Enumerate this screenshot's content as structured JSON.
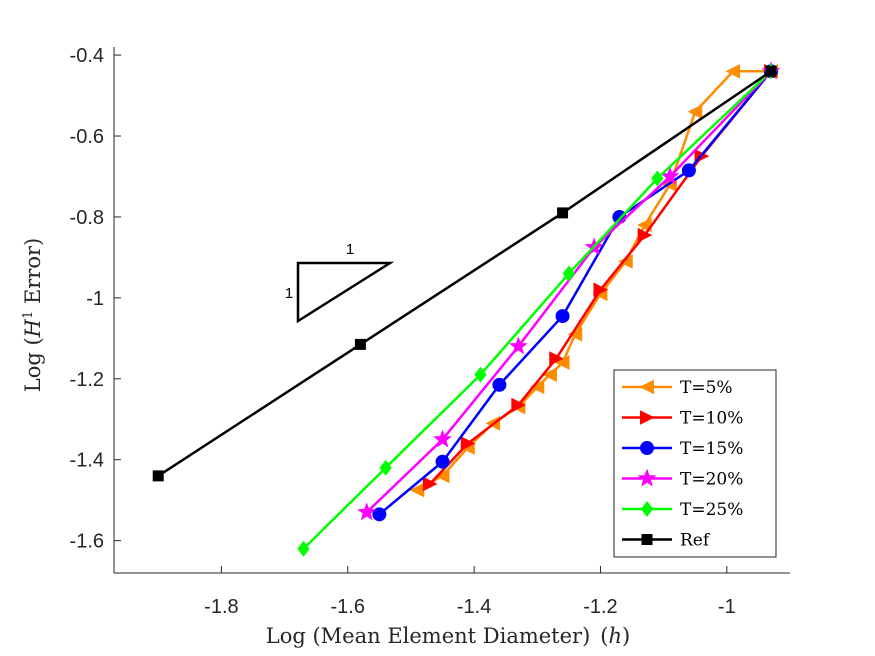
{
  "chart_data": {
    "type": "line",
    "title": "",
    "xlabel_main": "Log (Mean Element Diameter)",
    "xlabel_symbol": "h",
    "ylabel_prefix": "Log (",
    "ylabel_symbol": "H",
    "ylabel_sup": "1",
    "ylabel_suffix": " Error)",
    "xlim": [
      -1.97,
      -0.9
    ],
    "ylim": [
      -1.68,
      -0.38
    ],
    "xticks": [
      -1.8,
      -1.6,
      -1.4,
      -1.2,
      -1
    ],
    "xtick_labels": [
      "-1.8",
      "-1.6",
      "-1.4",
      "-1.2",
      "-1"
    ],
    "yticks": [
      -0.4,
      -0.6,
      -0.8,
      -1,
      -1.2,
      -1.4,
      -1.6
    ],
    "ytick_labels": [
      "-0.4",
      "-0.6",
      "-0.8",
      "-1",
      "-1.2",
      "-1.4",
      "-1.6"
    ],
    "grid": false,
    "legend_position": "bottom-right",
    "slope_triangle": {
      "horizontal_label": "1",
      "vertical_label": "1"
    },
    "series": [
      {
        "name": "T=5%",
        "color": "#ff8c00",
        "marker": "triangle-left",
        "x": [
          -1.49,
          -1.45,
          -1.41,
          -1.37,
          -1.33,
          -1.3,
          -1.28,
          -1.26,
          -1.24,
          -1.2,
          -1.16,
          -1.13,
          -1.09,
          -1.05,
          -0.99,
          -0.93
        ],
        "y": [
          -1.475,
          -1.44,
          -1.37,
          -1.31,
          -1.27,
          -1.22,
          -1.19,
          -1.16,
          -1.09,
          -0.99,
          -0.91,
          -0.82,
          -0.72,
          -0.54,
          -0.44,
          -0.44
        ]
      },
      {
        "name": "T=10%",
        "color": "#ff0000",
        "marker": "triangle-right",
        "x": [
          -1.47,
          -1.41,
          -1.33,
          -1.27,
          -1.2,
          -1.13,
          -1.04,
          -0.93
        ],
        "y": [
          -1.46,
          -1.36,
          -1.265,
          -1.15,
          -0.98,
          -0.845,
          -0.65,
          -0.44
        ]
      },
      {
        "name": "T=15%",
        "color": "#0000ff",
        "marker": "circle",
        "x": [
          -1.55,
          -1.45,
          -1.36,
          -1.26,
          -1.17,
          -1.06,
          -0.93
        ],
        "y": [
          -1.535,
          -1.405,
          -1.215,
          -1.045,
          -0.8,
          -0.685,
          -0.44
        ]
      },
      {
        "name": "T=20%",
        "color": "#ff00ff",
        "marker": "star",
        "x": [
          -1.57,
          -1.45,
          -1.33,
          -1.21,
          -1.09,
          -0.93
        ],
        "y": [
          -1.53,
          -1.35,
          -1.12,
          -0.875,
          -0.7,
          -0.44
        ]
      },
      {
        "name": "T=25%",
        "color": "#00ff00",
        "marker": "diamond",
        "x": [
          -1.67,
          -1.54,
          -1.39,
          -1.25,
          -1.11,
          -0.93
        ],
        "y": [
          -1.62,
          -1.42,
          -1.19,
          -0.94,
          -0.705,
          -0.44
        ]
      },
      {
        "name": "Ref",
        "color": "#000000",
        "marker": "square",
        "x": [
          -1.9,
          -1.58,
          -1.26,
          -0.93
        ],
        "y": [
          -1.44,
          -1.115,
          -0.79,
          -0.44
        ]
      }
    ]
  }
}
